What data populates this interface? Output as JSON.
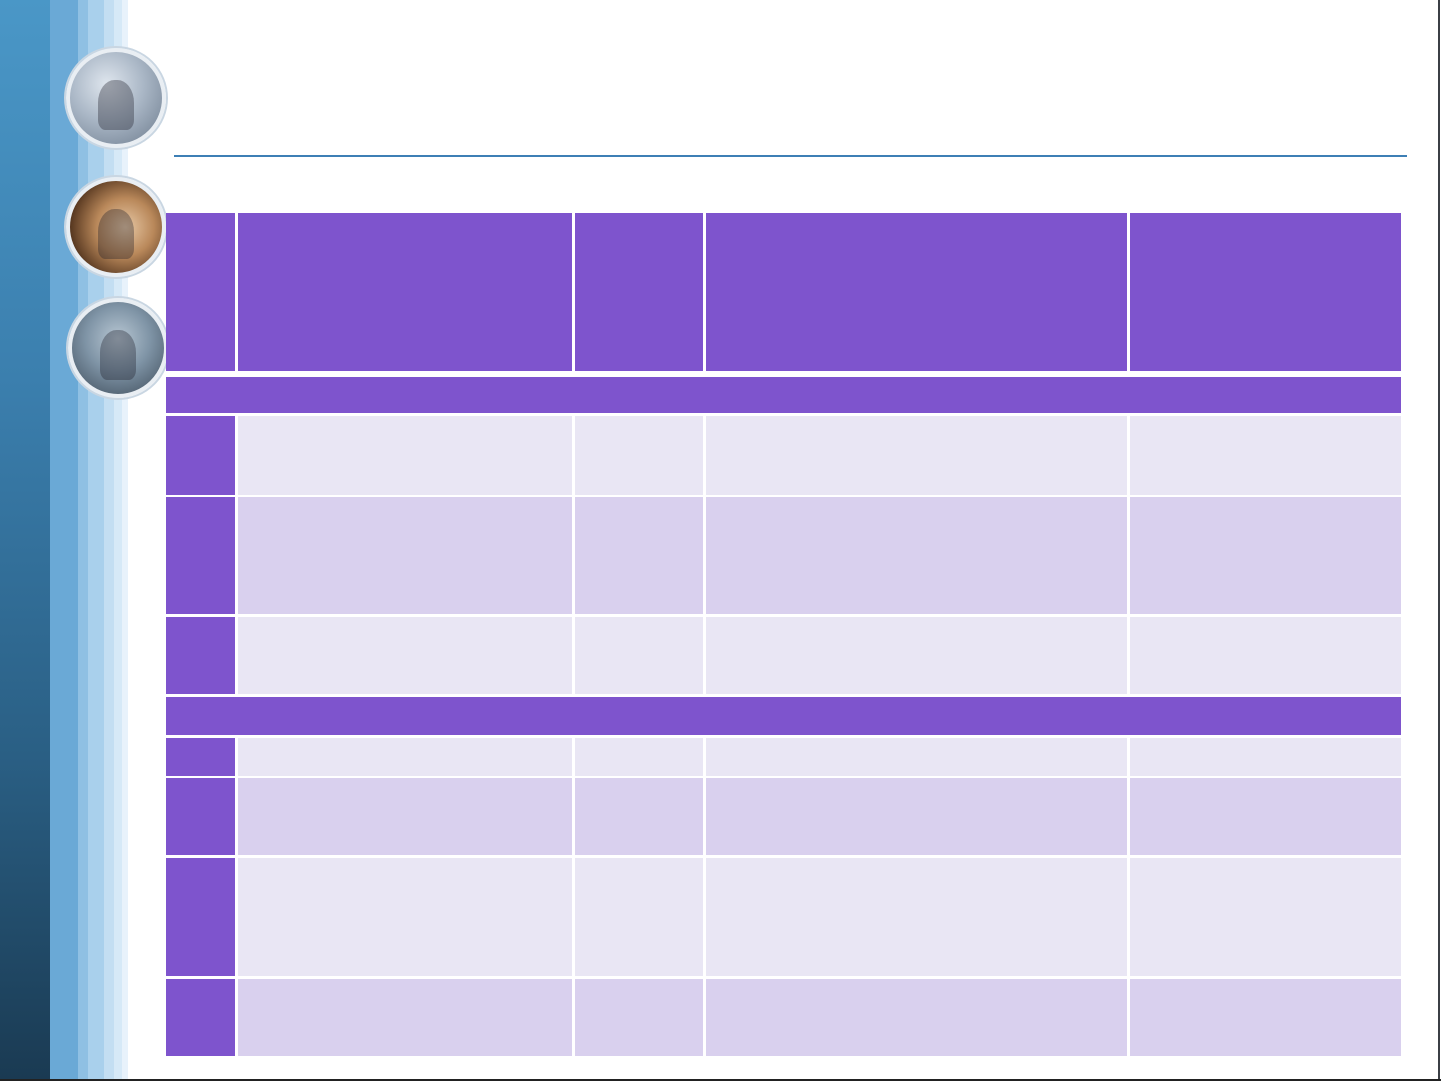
{
  "slide": {
    "title": "",
    "table": {
      "header": [
        "",
        "",
        "",
        "",
        ""
      ],
      "sections": [
        {
          "label": "",
          "rows": [
            [
              "",
              "",
              "",
              "",
              ""
            ],
            [
              "",
              "",
              "",
              "",
              ""
            ],
            [
              "",
              "",
              "",
              "",
              ""
            ]
          ]
        },
        {
          "label": "",
          "rows": [
            [
              "",
              "",
              "",
              "",
              ""
            ],
            [
              "",
              "",
              "",
              "",
              ""
            ],
            [
              "",
              "",
              "",
              "",
              ""
            ],
            [
              "",
              "",
              "",
              "",
              ""
            ]
          ]
        }
      ]
    }
  },
  "colors": {
    "header": "#7e54cd",
    "row_light": "#e9e6f4",
    "row_mid": "#d9d0ee",
    "rule": "#3d7fb5"
  },
  "images": [
    "handshake-photo",
    "business-people-photo",
    "walking-businessmen-photo"
  ]
}
